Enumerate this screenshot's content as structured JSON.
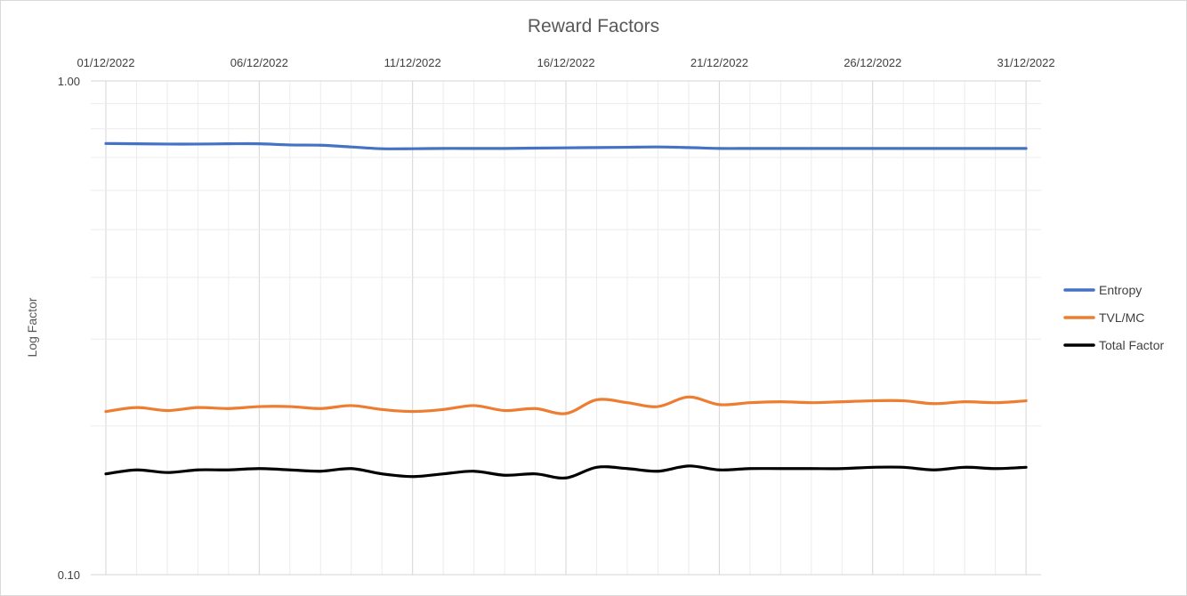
{
  "chart_data": {
    "type": "line",
    "title": "Reward Factors",
    "xlabel": "",
    "ylabel": "Log Factor",
    "y_scale": "log",
    "ylim": [
      0.1,
      1.0
    ],
    "y_tick_labels": [
      "1.00",
      "0.10"
    ],
    "x_tick_labels": [
      "01/12/2022",
      "06/12/2022",
      "11/12/2022",
      "16/12/2022",
      "21/12/2022",
      "26/12/2022",
      "31/12/2022"
    ],
    "x_axis_position": "top",
    "grid": true,
    "legend_position": "right",
    "x": [
      "01/12/2022",
      "02/12/2022",
      "03/12/2022",
      "04/12/2022",
      "05/12/2022",
      "06/12/2022",
      "07/12/2022",
      "08/12/2022",
      "09/12/2022",
      "10/12/2022",
      "11/12/2022",
      "12/12/2022",
      "13/12/2022",
      "14/12/2022",
      "15/12/2022",
      "16/12/2022",
      "17/12/2022",
      "18/12/2022",
      "19/12/2022",
      "20/12/2022",
      "21/12/2022",
      "22/12/2022",
      "23/12/2022",
      "24/12/2022",
      "25/12/2022",
      "26/12/2022",
      "27/12/2022",
      "28/12/2022",
      "29/12/2022",
      "30/12/2022",
      "31/12/2022"
    ],
    "series": [
      {
        "name": "Entropy",
        "color": "#4472c4",
        "values": [
          0.747,
          0.746,
          0.745,
          0.745,
          0.746,
          0.746,
          0.742,
          0.741,
          0.735,
          0.729,
          0.729,
          0.73,
          0.73,
          0.73,
          0.731,
          0.732,
          0.733,
          0.734,
          0.735,
          0.733,
          0.73,
          0.73,
          0.73,
          0.73,
          0.73,
          0.73,
          0.73,
          0.73,
          0.73,
          0.73,
          0.73
        ]
      },
      {
        "name": "TVL/MC",
        "color": "#ed7d31",
        "values": [
          0.214,
          0.218,
          0.215,
          0.218,
          0.217,
          0.219,
          0.219,
          0.217,
          0.22,
          0.216,
          0.214,
          0.216,
          0.22,
          0.215,
          0.217,
          0.212,
          0.226,
          0.223,
          0.219,
          0.229,
          0.221,
          0.223,
          0.224,
          0.223,
          0.224,
          0.225,
          0.225,
          0.222,
          0.224,
          0.223,
          0.225
        ]
      },
      {
        "name": "Total Factor",
        "color": "#000000",
        "values": [
          0.16,
          0.163,
          0.161,
          0.163,
          0.163,
          0.164,
          0.163,
          0.162,
          0.164,
          0.16,
          0.158,
          0.16,
          0.162,
          0.159,
          0.16,
          0.157,
          0.165,
          0.164,
          0.162,
          0.166,
          0.163,
          0.164,
          0.164,
          0.164,
          0.164,
          0.165,
          0.165,
          0.163,
          0.165,
          0.164,
          0.165
        ]
      }
    ]
  }
}
